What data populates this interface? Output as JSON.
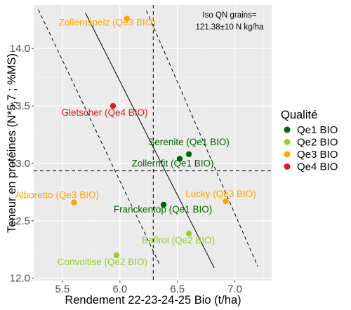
{
  "chart_data": {
    "type": "scatter",
    "title": "",
    "xlabel": "Rendement 22-23-24-25 Bio (t/ha)",
    "ylabel": "Teneur en protéines (N*5,7 ; %MS)",
    "xlim": [
      5.25,
      7.32
    ],
    "ylim": [
      11.98,
      14.38
    ],
    "x_ticks": [
      5.5,
      6.0,
      6.5,
      7.0
    ],
    "x_tick_labels": [
      "5.5",
      "6.0",
      "6.5",
      "7.0"
    ],
    "y_ticks": [
      12.0,
      12.5,
      13.0,
      13.5,
      14.0
    ],
    "y_tick_labels": [
      "12.0",
      "12.5",
      "13.0",
      "13.5",
      "14.0"
    ],
    "grid": true,
    "legend": {
      "title": "Qualité",
      "placement": "right",
      "entries": [
        {
          "label": "Qe1 BIO",
          "color": "#006400"
        },
        {
          "label": "Qe2 BIO",
          "color": "#9acd32"
        },
        {
          "label": "Qe3 BIO",
          "color": "#ffa500"
        },
        {
          "label": "Qe4 BIO",
          "color": "#e31a1c"
        }
      ]
    },
    "annotation": {
      "line1": "Iso QN grains=",
      "line2": "121.38±10 N kg/ha"
    },
    "reference_lines": {
      "vertical_x": 6.29,
      "horizontal_y": 12.935,
      "iso_center": [
        [
          5.7,
          14.31
        ],
        [
          6.82,
          12.09
        ]
      ],
      "iso_minus": [
        [
          5.29,
          14.34
        ],
        [
          6.35,
          12.11
        ]
      ],
      "iso_plus": [
        [
          6.23,
          14.33
        ],
        [
          7.2,
          12.1
        ]
      ]
    },
    "points": [
      {
        "label": "Zollernspelz (Qe3 BIO)",
        "x": 6.06,
        "y": 14.26,
        "group": "Qe3 BIO"
      },
      {
        "label": "Gletscher (Qe4 BIO)",
        "x": 5.94,
        "y": 13.5,
        "group": "Qe4 BIO"
      },
      {
        "label": "Serenite (Qe1 BIO)",
        "x": 6.6,
        "y": 13.08,
        "group": "Qe1 BIO"
      },
      {
        "label": "Zollernfit (Qe1 BIO)",
        "x": 6.52,
        "y": 13.04,
        "group": "Qe1 BIO"
      },
      {
        "label": "Alboretto (Qe3 BIO)",
        "x": 5.6,
        "y": 12.66,
        "group": "Qe3 BIO"
      },
      {
        "label": "Lucky (Qe3 BIO)",
        "x": 6.92,
        "y": 12.67,
        "group": "Qe3 BIO"
      },
      {
        "label": "Franckentop (Qe1 BIO)",
        "x": 6.38,
        "y": 12.64,
        "group": "Qe1 BIO"
      },
      {
        "label": "Baffroi (Qe2 BIO)",
        "x": 6.6,
        "y": 12.39,
        "group": "Qe2 BIO"
      },
      {
        "label": "Convoitise (Qe2 BIO)",
        "x": 5.97,
        "y": 12.2,
        "group": "Qe2 BIO"
      }
    ]
  }
}
